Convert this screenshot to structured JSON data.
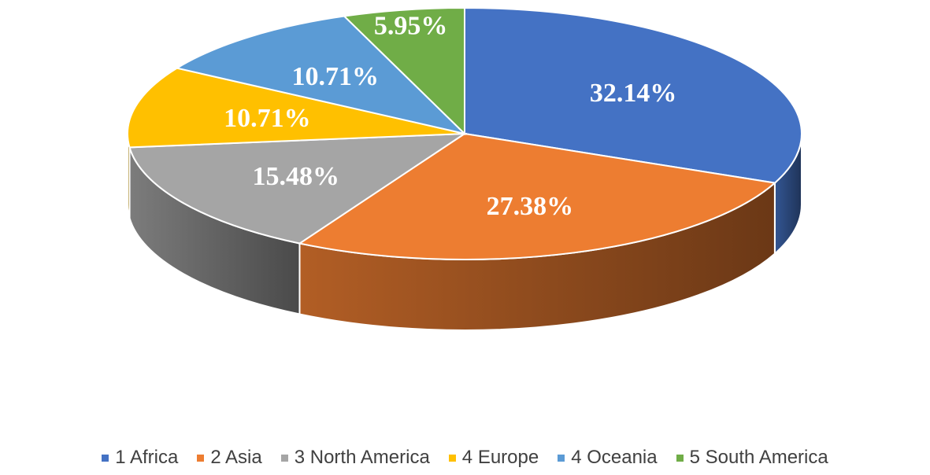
{
  "chart_data": {
    "type": "pie",
    "style": "3d",
    "categories": [
      "1 Africa",
      "2 Asia",
      "3 North America",
      "4 Europe",
      "4 Oceania",
      "5 South America"
    ],
    "values": [
      32.14,
      27.38,
      15.48,
      10.71,
      10.71,
      5.95
    ],
    "data_labels": [
      "32.14%",
      "27.38%",
      "15.48%",
      "10.71%",
      "10.71%",
      "5.95%"
    ],
    "colors": [
      "#4472C4",
      "#ED7D31",
      "#A5A5A5",
      "#FFC000",
      "#5B9BD5",
      "#70AD47"
    ],
    "legend_position": "bottom",
    "title": ""
  }
}
